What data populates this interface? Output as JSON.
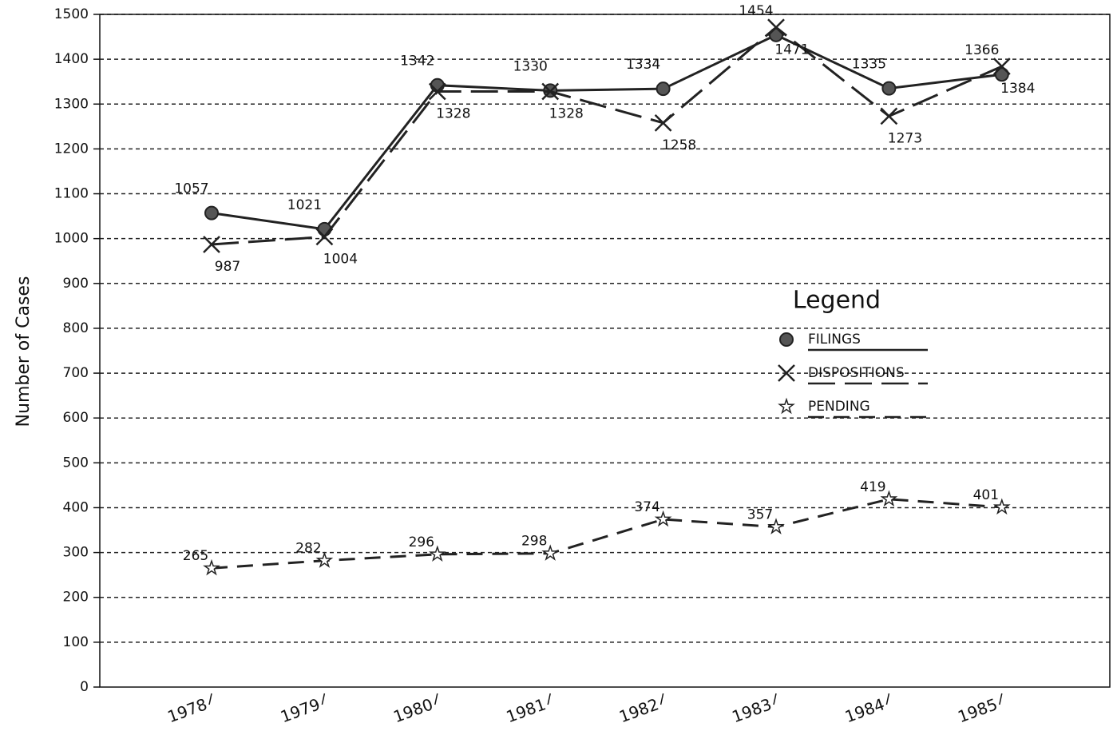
{
  "chart_data": {
    "type": "line",
    "y_label": "Number of Cases",
    "categories": [
      "1978",
      "1979",
      "1980",
      "1981",
      "1982",
      "1983",
      "1984",
      "1985"
    ],
    "series": [
      {
        "name": "FILINGS",
        "color": "#222222",
        "marker": "circle",
        "line": "solid",
        "values": [
          1057,
          1021,
          1342,
          1330,
          1334,
          1454,
          1335,
          1366
        ]
      },
      {
        "name": "DISPOSITIONS",
        "color": "#222222",
        "marker": "x",
        "line": "long-dash",
        "values": [
          987,
          1004,
          1328,
          1328,
          1258,
          1471,
          1273,
          1384
        ]
      },
      {
        "name": "PENDING",
        "color": "#222222",
        "marker": "star",
        "line": "dash",
        "values": [
          265,
          282,
          296,
          298,
          374,
          357,
          419,
          401
        ]
      }
    ],
    "ylim": [
      0,
      1500
    ],
    "yticks": [
      0,
      100,
      200,
      300,
      400,
      500,
      600,
      700,
      800,
      900,
      1000,
      1100,
      1200,
      1300,
      1400,
      1500
    ],
    "grid": true,
    "legend": {
      "title": "Legend",
      "position": "right"
    }
  }
}
